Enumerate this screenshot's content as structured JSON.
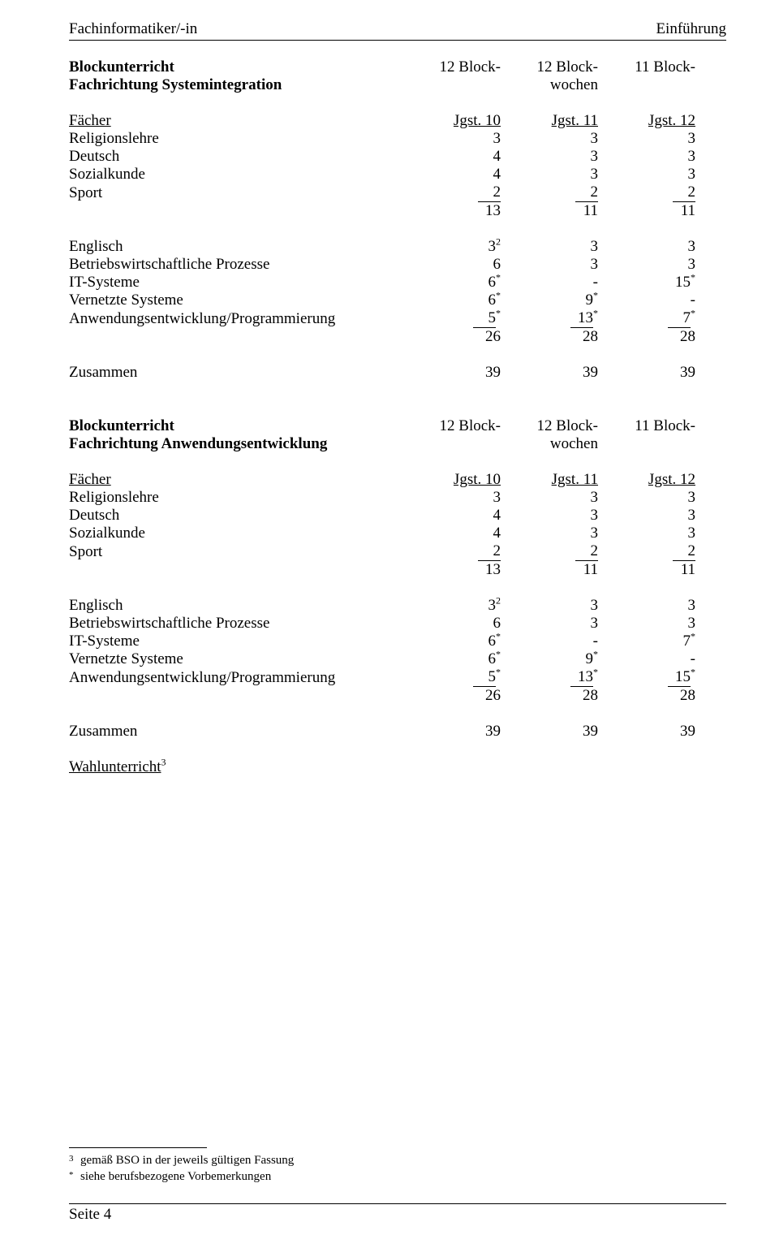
{
  "header": {
    "left": "Fachinformatiker/-in",
    "right": "Einführung"
  },
  "blocks": {
    "col_headers": {
      "c1": "12 Block-",
      "c2": "12 Block-",
      "c2b": "wochen",
      "c3": "11 Block-"
    },
    "faecher_label": "Fächer",
    "jgst": {
      "c1": "Jgst. 10",
      "c2": "Jgst. 11",
      "c3": "Jgst. 12"
    },
    "a": {
      "title1": "Blockunterricht",
      "title2": "Fachrichtung Systemintegration",
      "rows1": [
        {
          "label": "Religionslehre",
          "v": [
            "3",
            "3",
            "3"
          ]
        },
        {
          "label": "Deutsch",
          "v": [
            "4",
            "3",
            "3"
          ]
        },
        {
          "label": "Sozialkunde",
          "v": [
            "4",
            "3",
            "3"
          ]
        },
        {
          "label": "Sport",
          "v": [
            "2",
            "2",
            "2"
          ],
          "underline": true
        },
        {
          "label": "",
          "v": [
            "13",
            "11",
            "11"
          ]
        }
      ],
      "rows2": [
        {
          "label": "Englisch",
          "v": [
            "3",
            "3",
            "3"
          ],
          "sup1": "2"
        },
        {
          "label": "Betriebswirtschaftliche Prozesse",
          "v": [
            "6",
            "3",
            "3"
          ]
        },
        {
          "label": "IT-Systeme",
          "v": [
            "6",
            "-",
            "15"
          ],
          "sup1": "*",
          "sup3": "*"
        },
        {
          "label": "Vernetzte Systeme",
          "v": [
            "6",
            "9",
            "-"
          ],
          "sup1": "*",
          "sup2": "*"
        },
        {
          "label": "Anwendungsentwicklung/Programmierung",
          "v": [
            "5",
            "13",
            "7"
          ],
          "underline": true,
          "sup1": "*",
          "sup2": "*",
          "sup3": "*"
        },
        {
          "label": "",
          "v": [
            "26",
            "28",
            "28"
          ]
        }
      ],
      "zusammen": {
        "label": "Zusammen",
        "v": [
          "39",
          "39",
          "39"
        ]
      }
    },
    "b": {
      "title1": "Blockunterricht",
      "title2": "Fachrichtung Anwendungsentwicklung",
      "rows1": [
        {
          "label": "Religionslehre",
          "v": [
            "3",
            "3",
            "3"
          ]
        },
        {
          "label": "Deutsch",
          "v": [
            "4",
            "3",
            "3"
          ]
        },
        {
          "label": "Sozialkunde",
          "v": [
            "4",
            "3",
            "3"
          ]
        },
        {
          "label": "Sport",
          "v": [
            "2",
            "2",
            "2"
          ],
          "underline": true
        },
        {
          "label": "",
          "v": [
            "13",
            "11",
            "11"
          ]
        }
      ],
      "rows2": [
        {
          "label": "Englisch",
          "v": [
            "3",
            "3",
            "3"
          ],
          "sup1": "2"
        },
        {
          "label": "Betriebswirtschaftliche Prozesse",
          "v": [
            "6",
            "3",
            "3"
          ]
        },
        {
          "label": "IT-Systeme",
          "v": [
            "6",
            "-",
            "7"
          ],
          "sup1": "*",
          "sup3": "*"
        },
        {
          "label": "Vernetzte Systeme",
          "v": [
            "6",
            "9",
            "-"
          ],
          "sup1": "*",
          "sup2": "*"
        },
        {
          "label": "Anwendungsentwicklung/Programmierung",
          "v": [
            "5",
            "13",
            "15"
          ],
          "underline": true,
          "sup1": "*",
          "sup2": "*",
          "sup3": "*"
        },
        {
          "label": "",
          "v": [
            "26",
            "28",
            "28"
          ]
        }
      ],
      "zusammen": {
        "label": "Zusammen",
        "v": [
          "39",
          "39",
          "39"
        ]
      }
    },
    "wahl": "Wahlunterricht",
    "wahl_sup": "3"
  },
  "footnotes": {
    "f3": {
      "mark": "3",
      "text": "gemäß BSO in der jeweils gültigen Fassung"
    },
    "fstar": {
      "mark": "*",
      "text": "siehe berufsbezogene Vorbemerkungen"
    }
  },
  "footer": "Seite 4"
}
